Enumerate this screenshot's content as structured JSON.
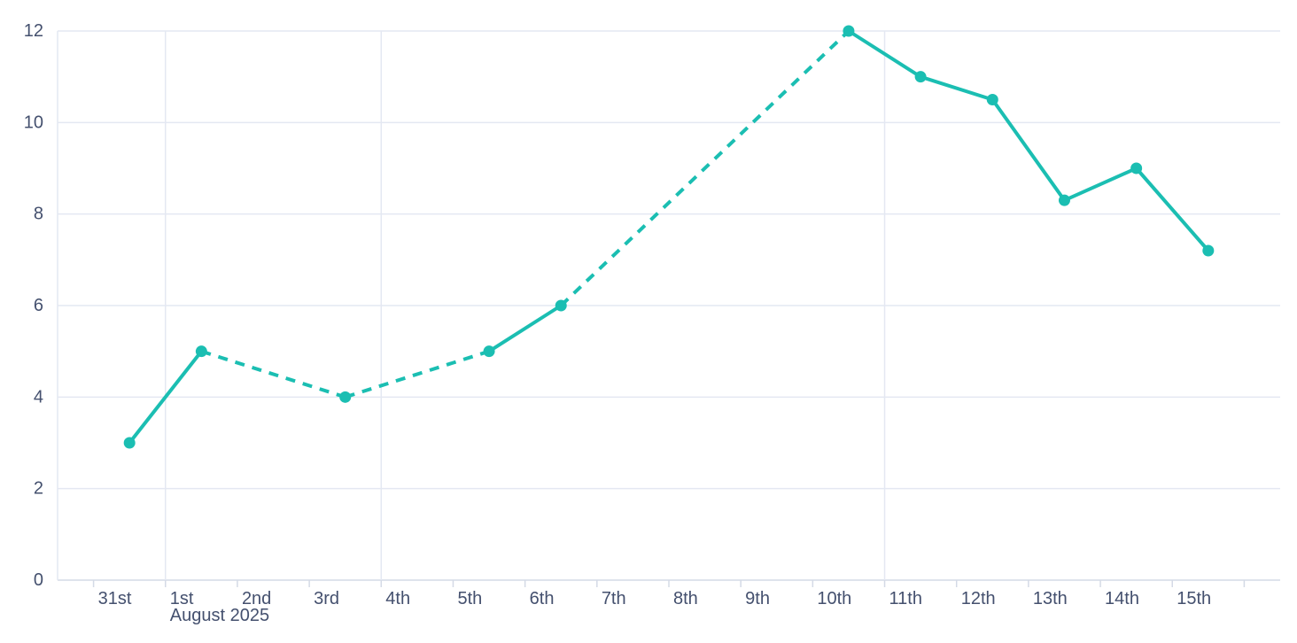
{
  "page": {
    "background": "#ffffff"
  },
  "chart_data": {
    "type": "line",
    "title": "",
    "xlabel": "",
    "ylabel": "",
    "x_axis": {
      "categories": [
        "31st",
        "1st",
        "2nd",
        "3rd",
        "4th",
        "5th",
        "6th",
        "7th",
        "8th",
        "9th",
        "10th",
        "11th",
        "12th",
        "13th",
        "14th",
        "15th"
      ],
      "secondary_label": {
        "category_index": 1,
        "text": "August 2025"
      },
      "gridline_boundary_indices": [
        1,
        4,
        11
      ]
    },
    "y_axis": {
      "min": 0,
      "max": 12,
      "ticks": [
        0,
        2,
        4,
        6,
        8,
        10,
        12
      ]
    },
    "series": [
      {
        "name": "daily-values",
        "values": [
          3,
          5,
          null,
          4,
          null,
          5,
          6,
          null,
          null,
          null,
          12,
          11,
          10.5,
          8.3,
          9,
          7.2
        ],
        "color": "#1bbeb2",
        "line_width": 4,
        "marker_radius": 6.5,
        "missing_data_dash": [
          11,
          9
        ]
      }
    ],
    "legend": null,
    "grid": true
  },
  "theme": {
    "text_color": "#44506e",
    "grid_color": "#e4e8f2",
    "axis_color": "#d4dae6",
    "axis_font_size_px": 20
  }
}
